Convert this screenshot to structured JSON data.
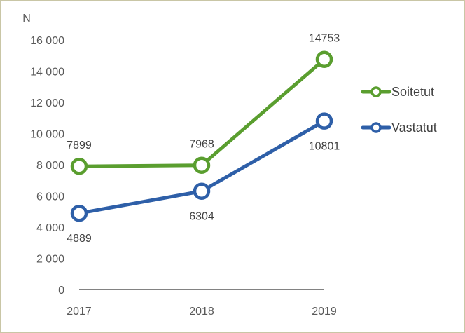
{
  "chart_data": {
    "type": "line",
    "ylabel": "N",
    "categories": [
      "2017",
      "2018",
      "2019"
    ],
    "ylim": [
      0,
      16000
    ],
    "yticks": [
      0,
      2000,
      4000,
      6000,
      8000,
      10000,
      12000,
      14000,
      16000
    ],
    "ytick_labels": [
      "0",
      "2 000",
      "4 000",
      "6 000",
      "8 000",
      "10 000",
      "12 000",
      "14 000",
      "16 000"
    ],
    "grid": false,
    "legend": "right",
    "series": [
      {
        "name": "Soitetut",
        "color": "#5a9e2f",
        "values": [
          7899,
          7968,
          14753
        ],
        "labels": [
          "7899",
          "7968",
          "14753"
        ],
        "label_position": [
          "above",
          "above",
          "above"
        ]
      },
      {
        "name": "Vastatut",
        "color": "#2e5fa8",
        "values": [
          4889,
          6304,
          10801
        ],
        "labels": [
          "4889",
          "6304",
          "10801"
        ],
        "label_position": [
          "below",
          "below",
          "below"
        ]
      }
    ]
  }
}
